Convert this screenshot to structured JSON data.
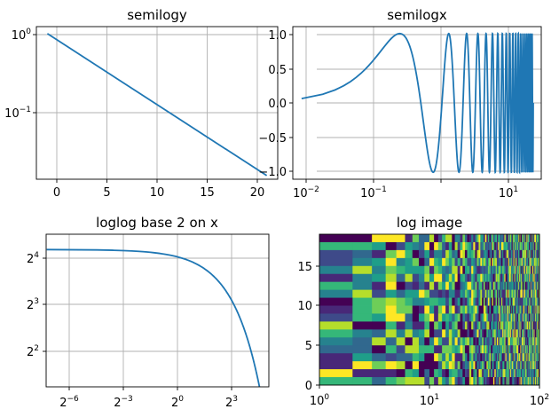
{
  "colors": {
    "line": "#1f77b4",
    "grid": "#b0b0b0"
  },
  "chart_data": [
    {
      "type": "line",
      "title": "semilogy",
      "xscale": "linear",
      "yscale": "log",
      "xlim": [
        -1,
        21
      ],
      "ylim": [
        0.0165,
        1.22
      ],
      "grid": true,
      "x_ticks": [
        "0",
        "5",
        "10",
        "15",
        "20"
      ],
      "y_ticks": [
        {
          "base": "10",
          "exp": "0"
        },
        {
          "base": "10",
          "exp": "−1"
        }
      ],
      "series": [
        {
          "x": [
            0,
            20
          ],
          "y": [
            1.0,
            0.0183
          ]
        }
      ]
    },
    {
      "type": "line",
      "title": "semilogx",
      "xscale": "log",
      "yscale": "linear",
      "xlim": [
        0.0075,
        26
      ],
      "ylim": [
        -1.1,
        1.1
      ],
      "grid": true,
      "x_ticks": [
        {
          "base": "10",
          "exp": "−2"
        },
        {
          "base": "10",
          "exp": "−1"
        },
        {
          "base": "10",
          "exp": "1"
        }
      ],
      "y_ticks": [
        "1.0",
        "0.5",
        "0.0",
        "−0.5",
        "−1.0"
      ],
      "series": [
        {
          "x_range": [
            0.01,
            20
          ],
          "function": "sin(2*pi*x)"
        }
      ]
    },
    {
      "type": "line",
      "title": "loglog base 2 on x",
      "xscale": "log2",
      "yscale": "log",
      "xlim": [
        0.0098,
        28
      ],
      "ylim": [
        2.7,
        25
      ],
      "grid": true,
      "x_ticks": [
        {
          "base": "2",
          "exp": "−6"
        },
        {
          "base": "2",
          "exp": "−3"
        },
        {
          "base": "2",
          "exp": "0"
        },
        {
          "base": "2",
          "exp": "3"
        }
      ],
      "y_ticks": [
        {
          "base": "2",
          "exp": "4"
        },
        {
          "base": "2",
          "exp": "3"
        },
        {
          "base": "2",
          "exp": "2"
        }
      ],
      "series": [
        {
          "x_range": [
            0.01,
            20
          ],
          "function": "20*exp(-x/10)"
        }
      ]
    },
    {
      "type": "heatmap",
      "title": "log image",
      "xscale": "log",
      "xlim": [
        1,
        100
      ],
      "ylim": [
        0,
        19
      ],
      "grid": false,
      "x_ticks": [
        {
          "base": "10",
          "exp": "0"
        },
        {
          "base": "10",
          "exp": "1"
        },
        {
          "base": "10",
          "exp": "2"
        }
      ],
      "y_ticks": [
        "15",
        "10",
        "5",
        "0"
      ],
      "colormap": "viridis"
    }
  ]
}
